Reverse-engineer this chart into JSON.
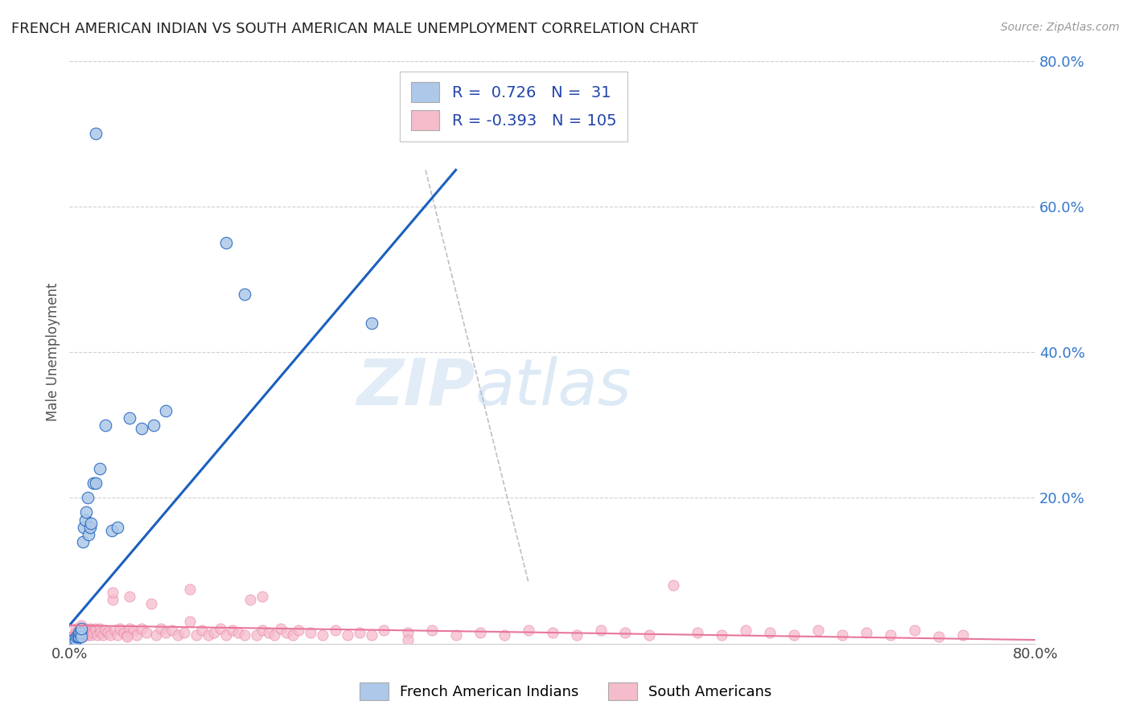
{
  "title": "FRENCH AMERICAN INDIAN VS SOUTH AMERICAN MALE UNEMPLOYMENT CORRELATION CHART",
  "source": "Source: ZipAtlas.com",
  "ylabel": "Male Unemployment",
  "xlim": [
    0,
    0.8
  ],
  "ylim": [
    0,
    0.8
  ],
  "yticks_right": [
    0.2,
    0.4,
    0.6,
    0.8
  ],
  "ytick_right_labels": [
    "20.0%",
    "40.0%",
    "60.0%",
    "80.0%"
  ],
  "blue_R": 0.726,
  "blue_N": 31,
  "pink_R": -0.393,
  "pink_N": 105,
  "blue_color": "#adc8e8",
  "blue_line_color": "#1a5fbd",
  "pink_color": "#f5bccb",
  "pink_line_color": "#e8769a",
  "grid_color": "#d0d0d0",
  "bg_color": "#ffffff",
  "blue_scatter_x": [
    0.003,
    0.005,
    0.006,
    0.007,
    0.008,
    0.008,
    0.009,
    0.01,
    0.01,
    0.011,
    0.012,
    0.013,
    0.014,
    0.015,
    0.016,
    0.017,
    0.018,
    0.02,
    0.022,
    0.025,
    0.03,
    0.035,
    0.04,
    0.05,
    0.06,
    0.07,
    0.08,
    0.022,
    0.13,
    0.145,
    0.25
  ],
  "blue_scatter_y": [
    0.005,
    0.005,
    0.01,
    0.01,
    0.01,
    0.015,
    0.015,
    0.01,
    0.02,
    0.14,
    0.16,
    0.17,
    0.18,
    0.2,
    0.15,
    0.16,
    0.165,
    0.22,
    0.22,
    0.24,
    0.3,
    0.155,
    0.16,
    0.31,
    0.295,
    0.3,
    0.32,
    0.7,
    0.55,
    0.48,
    0.44
  ],
  "pink_scatter_x": [
    0.002,
    0.003,
    0.004,
    0.005,
    0.005,
    0.006,
    0.007,
    0.007,
    0.008,
    0.009,
    0.01,
    0.01,
    0.011,
    0.012,
    0.013,
    0.014,
    0.015,
    0.016,
    0.017,
    0.018,
    0.019,
    0.02,
    0.021,
    0.022,
    0.023,
    0.025,
    0.026,
    0.028,
    0.03,
    0.032,
    0.034,
    0.036,
    0.038,
    0.04,
    0.042,
    0.045,
    0.048,
    0.05,
    0.053,
    0.056,
    0.06,
    0.064,
    0.068,
    0.072,
    0.076,
    0.08,
    0.085,
    0.09,
    0.095,
    0.1,
    0.105,
    0.11,
    0.115,
    0.12,
    0.125,
    0.13,
    0.135,
    0.14,
    0.145,
    0.15,
    0.155,
    0.16,
    0.165,
    0.17,
    0.175,
    0.18,
    0.185,
    0.19,
    0.2,
    0.21,
    0.22,
    0.23,
    0.24,
    0.25,
    0.26,
    0.28,
    0.3,
    0.32,
    0.34,
    0.36,
    0.38,
    0.4,
    0.42,
    0.44,
    0.46,
    0.48,
    0.5,
    0.52,
    0.54,
    0.56,
    0.58,
    0.6,
    0.62,
    0.64,
    0.66,
    0.68,
    0.7,
    0.72,
    0.74,
    0.05,
    0.036,
    0.1,
    0.16,
    0.048,
    0.28
  ],
  "pink_scatter_y": [
    0.01,
    0.008,
    0.012,
    0.015,
    0.02,
    0.01,
    0.012,
    0.018,
    0.015,
    0.018,
    0.01,
    0.025,
    0.015,
    0.012,
    0.02,
    0.018,
    0.012,
    0.015,
    0.02,
    0.012,
    0.018,
    0.015,
    0.02,
    0.018,
    0.012,
    0.02,
    0.015,
    0.012,
    0.018,
    0.015,
    0.012,
    0.06,
    0.018,
    0.012,
    0.02,
    0.015,
    0.012,
    0.02,
    0.018,
    0.012,
    0.02,
    0.015,
    0.055,
    0.012,
    0.02,
    0.015,
    0.018,
    0.012,
    0.015,
    0.03,
    0.012,
    0.018,
    0.012,
    0.015,
    0.02,
    0.012,
    0.018,
    0.015,
    0.012,
    0.06,
    0.012,
    0.018,
    0.015,
    0.012,
    0.02,
    0.015,
    0.012,
    0.018,
    0.015,
    0.012,
    0.018,
    0.012,
    0.015,
    0.012,
    0.018,
    0.015,
    0.018,
    0.012,
    0.015,
    0.012,
    0.018,
    0.015,
    0.012,
    0.018,
    0.015,
    0.012,
    0.08,
    0.015,
    0.012,
    0.018,
    0.015,
    0.012,
    0.018,
    0.012,
    0.015,
    0.012,
    0.018,
    0.01,
    0.012,
    0.065,
    0.07,
    0.075,
    0.065,
    0.01,
    0.005
  ],
  "blue_trend_x": [
    0.0,
    0.32
  ],
  "blue_trend_y": [
    0.025,
    0.65
  ],
  "pink_trend_x": [
    0.0,
    0.8
  ],
  "pink_trend_y": [
    0.025,
    0.005
  ],
  "dash_line_x": [
    0.295,
    0.38
  ],
  "dash_line_y": [
    0.65,
    0.085
  ]
}
